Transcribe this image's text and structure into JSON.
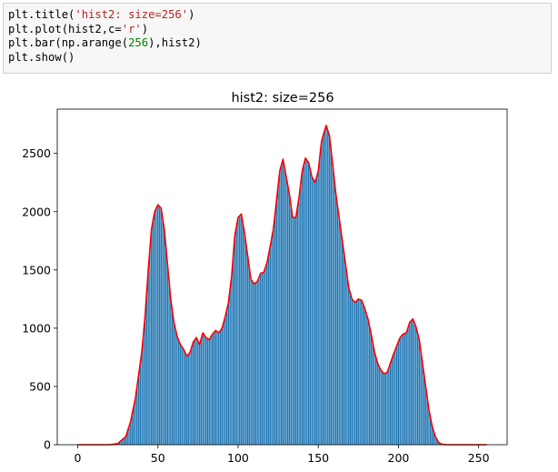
{
  "code_cell": {
    "lines": [
      [
        {
          "t": "plt.title("
        },
        {
          "t": "'hist2: size=256'",
          "c": "str"
        },
        {
          "t": ")"
        }
      ],
      [
        {
          "t": "plt.plot(hist2,c="
        },
        {
          "t": "'r'",
          "c": "str"
        },
        {
          "t": ")"
        }
      ],
      [
        {
          "t": "plt.bar(np.arange("
        },
        {
          "t": "256",
          "c": "num"
        },
        {
          "t": "),hist2)"
        }
      ],
      [
        {
          "t": "plt.show()"
        }
      ]
    ]
  },
  "colors": {
    "bar": "#1f77b4",
    "line": "#ff0000",
    "string_token": "#ba2121",
    "number_token": "#008000"
  },
  "chart_data": {
    "type": "bar",
    "title": "hist2: size=256",
    "xlabel": "",
    "ylabel": "",
    "xlim": [
      -12.75,
      267.75
    ],
    "ylim": [
      0,
      2880
    ],
    "xticks": [
      0,
      50,
      100,
      150,
      200,
      250
    ],
    "yticks": [
      0,
      500,
      1000,
      1500,
      2000,
      2500
    ],
    "grid": false,
    "legend": "none",
    "bar_color": "#1f77b4",
    "line_color": "#ff0000",
    "series_keypoints": [
      [
        0,
        0
      ],
      [
        20,
        0
      ],
      [
        25,
        10
      ],
      [
        30,
        70
      ],
      [
        33,
        200
      ],
      [
        36,
        400
      ],
      [
        40,
        800
      ],
      [
        42,
        1100
      ],
      [
        44,
        1500
      ],
      [
        46,
        1850
      ],
      [
        48,
        2000
      ],
      [
        50,
        2060
      ],
      [
        52,
        2030
      ],
      [
        54,
        1850
      ],
      [
        56,
        1550
      ],
      [
        58,
        1250
      ],
      [
        60,
        1050
      ],
      [
        62,
        930
      ],
      [
        64,
        860
      ],
      [
        66,
        820
      ],
      [
        68,
        760
      ],
      [
        70,
        790
      ],
      [
        72,
        880
      ],
      [
        74,
        920
      ],
      [
        76,
        860
      ],
      [
        78,
        960
      ],
      [
        80,
        920
      ],
      [
        82,
        900
      ],
      [
        84,
        950
      ],
      [
        86,
        980
      ],
      [
        88,
        960
      ],
      [
        90,
        1000
      ],
      [
        92,
        1100
      ],
      [
        94,
        1220
      ],
      [
        96,
        1450
      ],
      [
        98,
        1800
      ],
      [
        100,
        1950
      ],
      [
        102,
        1980
      ],
      [
        104,
        1820
      ],
      [
        106,
        1620
      ],
      [
        108,
        1420
      ],
      [
        110,
        1380
      ],
      [
        112,
        1400
      ],
      [
        114,
        1470
      ],
      [
        116,
        1480
      ],
      [
        118,
        1560
      ],
      [
        120,
        1700
      ],
      [
        122,
        1850
      ],
      [
        124,
        2100
      ],
      [
        126,
        2350
      ],
      [
        128,
        2450
      ],
      [
        130,
        2300
      ],
      [
        132,
        2150
      ],
      [
        134,
        1950
      ],
      [
        136,
        1950
      ],
      [
        138,
        2120
      ],
      [
        140,
        2350
      ],
      [
        142,
        2460
      ],
      [
        144,
        2420
      ],
      [
        146,
        2300
      ],
      [
        148,
        2250
      ],
      [
        150,
        2350
      ],
      [
        152,
        2600
      ],
      [
        154,
        2700
      ],
      [
        155,
        2740
      ],
      [
        157,
        2650
      ],
      [
        159,
        2400
      ],
      [
        161,
        2150
      ],
      [
        163,
        1950
      ],
      [
        165,
        1750
      ],
      [
        167,
        1550
      ],
      [
        169,
        1350
      ],
      [
        171,
        1250
      ],
      [
        173,
        1220
      ],
      [
        175,
        1250
      ],
      [
        177,
        1240
      ],
      [
        179,
        1170
      ],
      [
        181,
        1080
      ],
      [
        183,
        950
      ],
      [
        185,
        800
      ],
      [
        187,
        700
      ],
      [
        189,
        640
      ],
      [
        191,
        610
      ],
      [
        193,
        620
      ],
      [
        195,
        700
      ],
      [
        197,
        780
      ],
      [
        199,
        850
      ],
      [
        201,
        920
      ],
      [
        203,
        950
      ],
      [
        205,
        960
      ],
      [
        207,
        1050
      ],
      [
        209,
        1080
      ],
      [
        211,
        1010
      ],
      [
        213,
        900
      ],
      [
        215,
        700
      ],
      [
        217,
        500
      ],
      [
        219,
        300
      ],
      [
        221,
        160
      ],
      [
        223,
        70
      ],
      [
        225,
        20
      ],
      [
        227,
        5
      ],
      [
        230,
        0
      ],
      [
        255,
        0
      ]
    ]
  }
}
